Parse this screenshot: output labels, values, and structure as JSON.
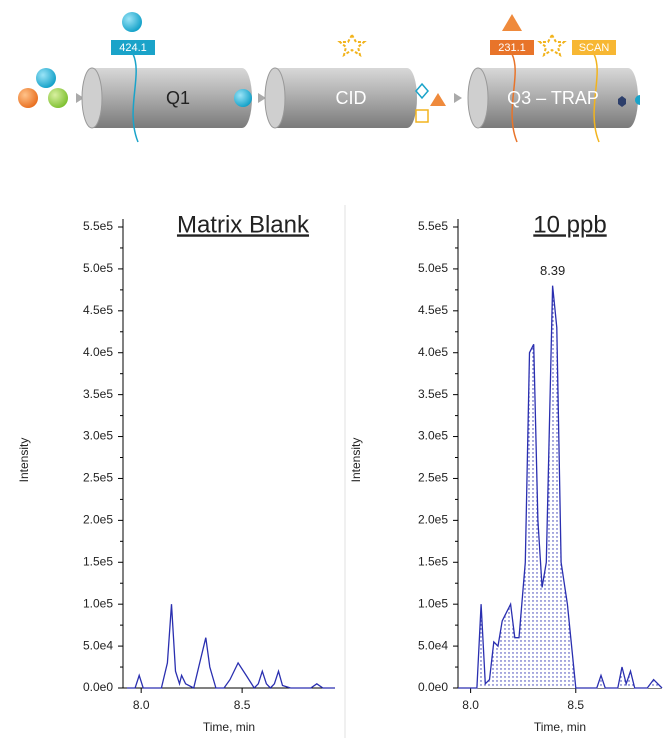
{
  "diagram": {
    "q1": "Q1",
    "cid": "CID",
    "q3": "Q3 – TRAP",
    "q1_mass": "424.1",
    "q3_mass": "231.1",
    "scan": "SCAN"
  },
  "chart_data": [
    {
      "type": "line",
      "title": "Matrix Blank",
      "x_label": "Time, min",
      "y_label": "Intensity",
      "color": "#2a2fb0",
      "xlim": [
        7.91,
        8.96
      ],
      "ylim": [
        0,
        550000
      ],
      "xticks": [
        {
          "value": 8,
          "label": "8.0"
        },
        8.5
      ],
      "yticks": [
        {
          "value": 0,
          "label": "0.0e0"
        },
        {
          "value": 50000,
          "label": "5.0e4"
        },
        {
          "value": 100000,
          "label": "1.0e5"
        },
        {
          "value": 150000,
          "label": "1.5e5"
        },
        {
          "value": 200000,
          "label": "2.0e5"
        },
        {
          "value": 250000,
          "label": "2.5e5"
        },
        {
          "value": 300000,
          "label": "3.0e5"
        },
        {
          "value": 350000,
          "label": "3.5e5"
        },
        {
          "value": 400000,
          "label": "4.0e5"
        },
        {
          "value": 450000,
          "label": "4.5e5"
        },
        {
          "value": 500000,
          "label": "5.0e5"
        },
        {
          "value": 550000,
          "label": "5.5e5"
        }
      ],
      "shaded": false,
      "x": [
        7.93,
        7.97,
        7.99,
        8.01,
        8.1,
        8.13,
        8.15,
        8.17,
        8.19,
        8.2,
        8.22,
        8.26,
        8.29,
        8.32,
        8.34,
        8.37,
        8.41,
        8.44,
        8.48,
        8.52,
        8.56,
        8.58,
        8.6,
        8.62,
        8.64,
        8.66,
        8.68,
        8.7,
        8.74,
        8.84,
        8.87,
        8.9,
        8.96
      ],
      "values": [
        0,
        0,
        15000,
        0,
        0,
        30000,
        100000,
        20000,
        5000,
        15000,
        5000,
        0,
        30000,
        60000,
        25000,
        0,
        0,
        10000,
        30000,
        15000,
        0,
        5000,
        20000,
        5000,
        0,
        5000,
        20000,
        3000,
        0,
        0,
        5000,
        0,
        0
      ]
    },
    {
      "type": "line",
      "title": "10 ppb",
      "x_label": "Time, min",
      "y_label": "Intensity",
      "color": "#2a2fb0",
      "xlim": [
        7.94,
        8.91
      ],
      "ylim": [
        0,
        550000
      ],
      "xticks": [
        {
          "value": 8,
          "label": "8.0"
        },
        8.5
      ],
      "yticks": [
        {
          "value": 0,
          "label": "0.0e0"
        },
        {
          "value": 50000,
          "label": "5.0e4"
        },
        {
          "value": 100000,
          "label": "1.0e5"
        },
        {
          "value": 150000,
          "label": "1.5e5"
        },
        {
          "value": 200000,
          "label": "2.0e5"
        },
        {
          "value": 250000,
          "label": "2.5e5"
        },
        {
          "value": 300000,
          "label": "3.0e5"
        },
        {
          "value": 350000,
          "label": "3.5e5"
        },
        {
          "value": 400000,
          "label": "4.0e5"
        },
        {
          "value": 450000,
          "label": "4.5e5"
        },
        {
          "value": 500000,
          "label": "5.0e5"
        },
        {
          "value": 550000,
          "label": "5.5e5"
        }
      ],
      "shaded": true,
      "annotations": [
        {
          "text": "8.39",
          "x": 8.39,
          "y": 480000
        }
      ],
      "x": [
        7.94,
        8.03,
        8.05,
        8.07,
        8.09,
        8.11,
        8.13,
        8.15,
        8.17,
        8.19,
        8.21,
        8.23,
        8.26,
        8.28,
        8.3,
        8.32,
        8.34,
        8.36,
        8.39,
        8.41,
        8.43,
        8.46,
        8.5,
        8.55,
        8.6,
        8.62,
        8.64,
        8.7,
        8.72,
        8.74,
        8.76,
        8.78,
        8.8,
        8.84,
        8.87,
        8.91
      ],
      "values": [
        0,
        0,
        100000,
        5000,
        10000,
        55000,
        50000,
        80000,
        90000,
        100000,
        60000,
        60000,
        150000,
        400000,
        410000,
        200000,
        120000,
        150000,
        480000,
        430000,
        150000,
        100000,
        0,
        0,
        0,
        15000,
        0,
        0,
        25000,
        5000,
        20000,
        0,
        0,
        0,
        10000,
        0
      ]
    }
  ]
}
